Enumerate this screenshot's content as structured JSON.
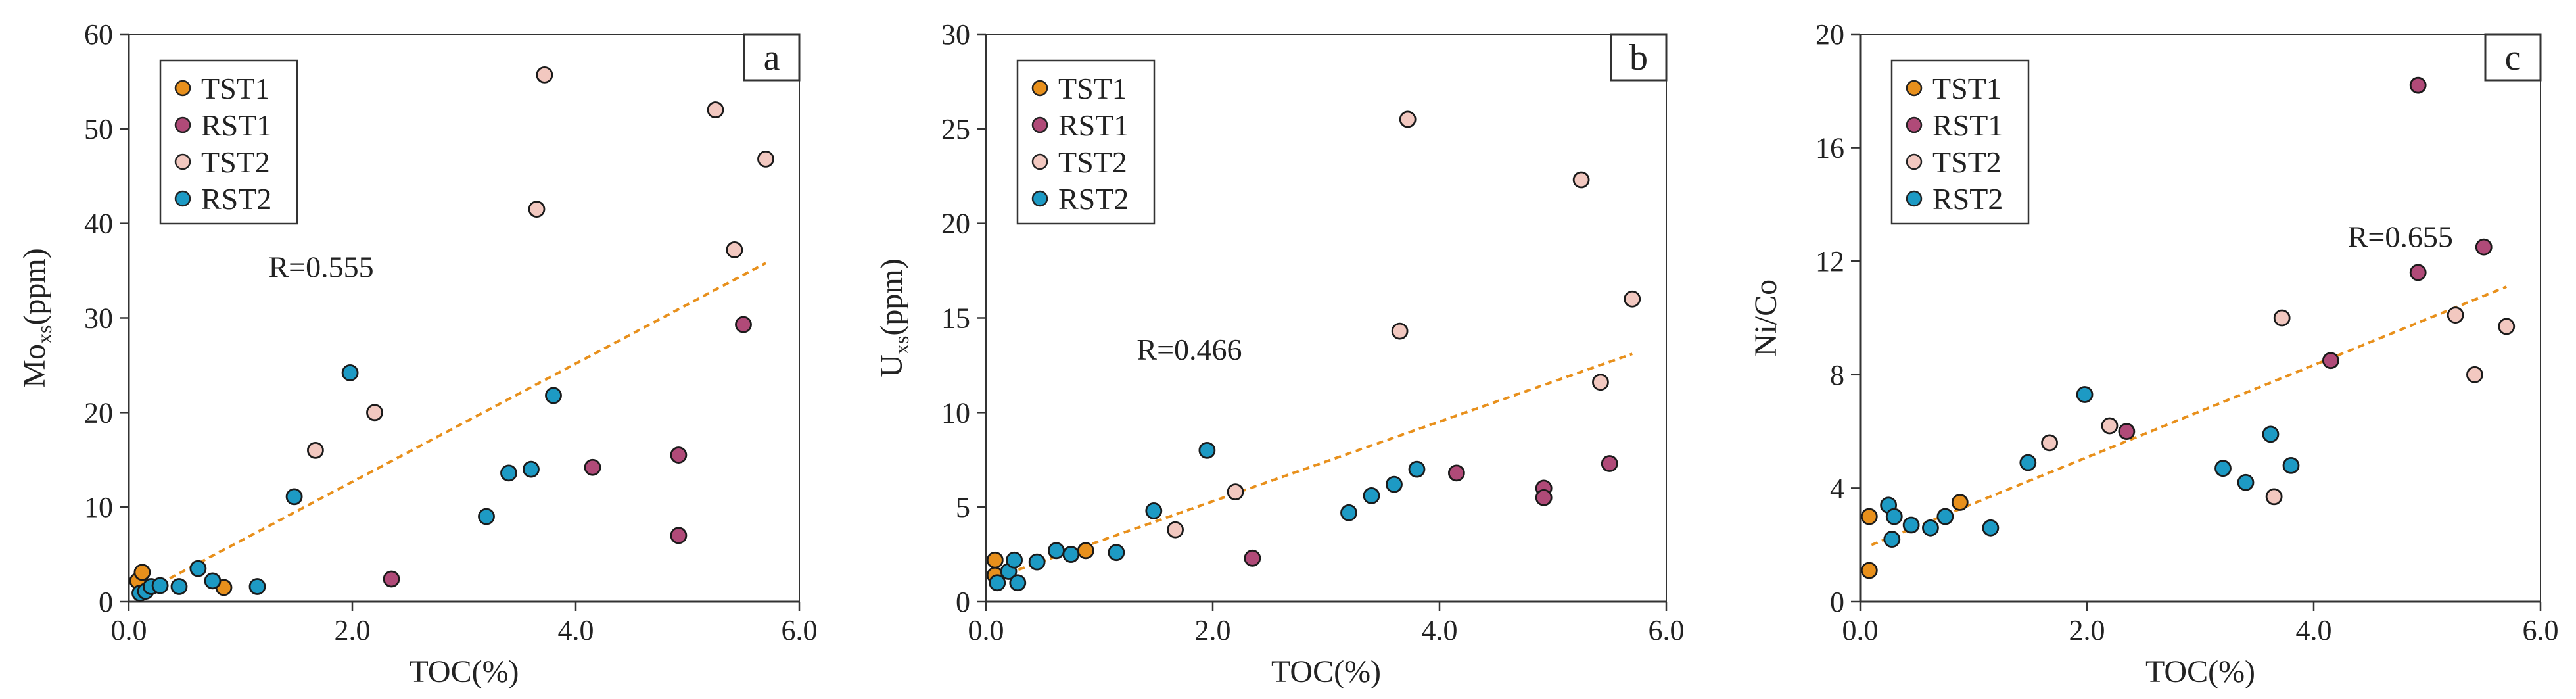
{
  "figure_title": "TOC correlation scatter plots",
  "colors": {
    "TST1": "#e8901c",
    "RST1": "#b04a78",
    "TST2": "#f2c8c0",
    "RST2": "#1d9ac4",
    "trend": "#e8901c",
    "axis": "#333333"
  },
  "chart_data": [
    {
      "type": "scatter",
      "panel_label": "a",
      "xlabel": "TOC(%)",
      "ylabel_main": "Mo",
      "ylabel_sub": "xs",
      "ylabel_unit": "(ppm)",
      "xlim": [
        0,
        6
      ],
      "ylim": [
        0,
        60
      ],
      "xticks": [
        0,
        2,
        4,
        6
      ],
      "xtick_labels": [
        "0.0",
        "2.0",
        "4.0",
        "6.0"
      ],
      "yticks": [
        0,
        10,
        20,
        30,
        40,
        50,
        60
      ],
      "ytick_labels": [
        "0",
        "10",
        "20",
        "30",
        "40",
        "50",
        "60"
      ],
      "legend": [
        "TST1",
        "RST1",
        "TST2",
        "RST2"
      ],
      "annotation": "R=0.555",
      "annotation_at": [
        1.25,
        34.3
      ],
      "trendline": [
        [
          0.1,
          0.8
        ],
        [
          5.7,
          35.8
        ]
      ],
      "series": [
        {
          "name": "TST1",
          "points": [
            [
              0.08,
              2.2
            ],
            [
              0.12,
              3.1
            ],
            [
              0.85,
              1.5
            ]
          ]
        },
        {
          "name": "RST1",
          "points": [
            [
              2.35,
              2.4
            ],
            [
              4.15,
              14.2
            ],
            [
              4.92,
              15.5
            ],
            [
              4.92,
              7.0
            ],
            [
              5.5,
              29.3
            ]
          ]
        },
        {
          "name": "TST2",
          "points": [
            [
              1.67,
              16.0
            ],
            [
              2.2,
              20.0
            ],
            [
              3.65,
              41.5
            ],
            [
              3.72,
              55.7
            ],
            [
              5.25,
              52.0
            ],
            [
              5.42,
              37.2
            ],
            [
              5.7,
              46.8
            ]
          ]
        },
        {
          "name": "RST2",
          "points": [
            [
              0.1,
              0.9
            ],
            [
              0.15,
              1.1
            ],
            [
              0.2,
              1.6
            ],
            [
              0.28,
              1.7
            ],
            [
              0.45,
              1.6
            ],
            [
              0.62,
              3.5
            ],
            [
              0.75,
              2.2
            ],
            [
              1.15,
              1.6
            ],
            [
              1.48,
              11.1
            ],
            [
              1.98,
              24.2
            ],
            [
              3.2,
              9.0
            ],
            [
              3.4,
              13.6
            ],
            [
              3.6,
              14.0
            ],
            [
              3.8,
              21.8
            ]
          ]
        }
      ]
    },
    {
      "type": "scatter",
      "panel_label": "b",
      "xlabel": "TOC(%)",
      "ylabel_main": "U",
      "ylabel_sub": "xs",
      "ylabel_unit": "(ppm)",
      "xlim": [
        0,
        6
      ],
      "ylim": [
        0,
        30
      ],
      "xticks": [
        0,
        2,
        4,
        6
      ],
      "xtick_labels": [
        "0.0",
        "2.0",
        "4.0",
        "6.0"
      ],
      "yticks": [
        0,
        5,
        10,
        15,
        20,
        25,
        30
      ],
      "ytick_labels": [
        "0",
        "5",
        "10",
        "15",
        "20",
        "25",
        "30"
      ],
      "legend": [
        "TST1",
        "RST1",
        "TST2",
        "RST2"
      ],
      "annotation": "R=0.466",
      "annotation_at": [
        1.33,
        12.8
      ],
      "trendline": [
        [
          0.1,
          1.3
        ],
        [
          5.7,
          13.1
        ]
      ],
      "series": [
        {
          "name": "TST1",
          "points": [
            [
              0.08,
              2.2
            ],
            [
              0.08,
              1.4
            ],
            [
              0.88,
              2.7
            ]
          ]
        },
        {
          "name": "RST1",
          "points": [
            [
              2.35,
              2.3
            ],
            [
              4.15,
              6.8
            ],
            [
              4.92,
              6.0
            ],
            [
              4.92,
              5.5
            ],
            [
              5.5,
              7.3
            ]
          ]
        },
        {
          "name": "TST2",
          "points": [
            [
              1.67,
              3.8
            ],
            [
              2.2,
              5.8
            ],
            [
              3.65,
              14.3
            ],
            [
              3.72,
              25.5
            ],
            [
              5.25,
              22.3
            ],
            [
              5.42,
              11.6
            ],
            [
              5.7,
              16.0
            ]
          ]
        },
        {
          "name": "RST2",
          "points": [
            [
              0.1,
              1.0
            ],
            [
              0.2,
              1.6
            ],
            [
              0.25,
              2.2
            ],
            [
              0.28,
              1.0
            ],
            [
              0.45,
              2.1
            ],
            [
              0.62,
              2.7
            ],
            [
              0.75,
              2.5
            ],
            [
              1.15,
              2.6
            ],
            [
              1.48,
              4.8
            ],
            [
              1.95,
              8.0
            ],
            [
              3.2,
              4.7
            ],
            [
              3.4,
              5.6
            ],
            [
              3.6,
              6.2
            ],
            [
              3.8,
              7.0
            ]
          ]
        }
      ]
    },
    {
      "type": "scatter",
      "panel_label": "c",
      "xlabel": "TOC(%)",
      "ylabel_main": "Ni/Co",
      "ylabel_sub": "",
      "ylabel_unit": "",
      "xlim": [
        0,
        6
      ],
      "ylim": [
        0,
        20
      ],
      "xticks": [
        0,
        2,
        4,
        6
      ],
      "xtick_labels": [
        "0.0",
        "2.0",
        "4.0",
        "6.0"
      ],
      "yticks": [
        0,
        4,
        8,
        12,
        16,
        20
      ],
      "ytick_labels": [
        "0",
        "4",
        "8",
        "12",
        "16",
        "20"
      ],
      "legend": [
        "TST1",
        "RST1",
        "TST2",
        "RST2"
      ],
      "annotation": "R=0.655",
      "annotation_at": [
        4.3,
        12.5
      ],
      "trendline": [
        [
          0.1,
          2.0
        ],
        [
          5.7,
          11.1
        ]
      ],
      "series": [
        {
          "name": "TST1",
          "points": [
            [
              0.08,
              3.0
            ],
            [
              0.08,
              1.1
            ],
            [
              0.88,
              3.5
            ]
          ]
        },
        {
          "name": "RST1",
          "points": [
            [
              2.35,
              6.0
            ],
            [
              4.15,
              8.5
            ],
            [
              4.92,
              18.2
            ],
            [
              4.92,
              11.6
            ],
            [
              5.5,
              12.5
            ]
          ]
        },
        {
          "name": "TST2",
          "points": [
            [
              1.67,
              5.6
            ],
            [
              2.2,
              6.2
            ],
            [
              3.65,
              3.7
            ],
            [
              3.72,
              10.0
            ],
            [
              5.25,
              10.1
            ],
            [
              5.42,
              8.0
            ],
            [
              5.7,
              9.7
            ]
          ]
        },
        {
          "name": "RST2",
          "points": [
            [
              0.25,
              3.4
            ],
            [
              0.28,
              2.2
            ],
            [
              0.3,
              3.0
            ],
            [
              0.45,
              2.7
            ],
            [
              0.62,
              2.6
            ],
            [
              0.75,
              3.0
            ],
            [
              1.15,
              2.6
            ],
            [
              1.48,
              4.9
            ],
            [
              1.98,
              7.3
            ],
            [
              3.2,
              4.7
            ],
            [
              3.4,
              4.2
            ],
            [
              3.62,
              5.9
            ],
            [
              3.8,
              4.8
            ]
          ]
        }
      ]
    }
  ]
}
